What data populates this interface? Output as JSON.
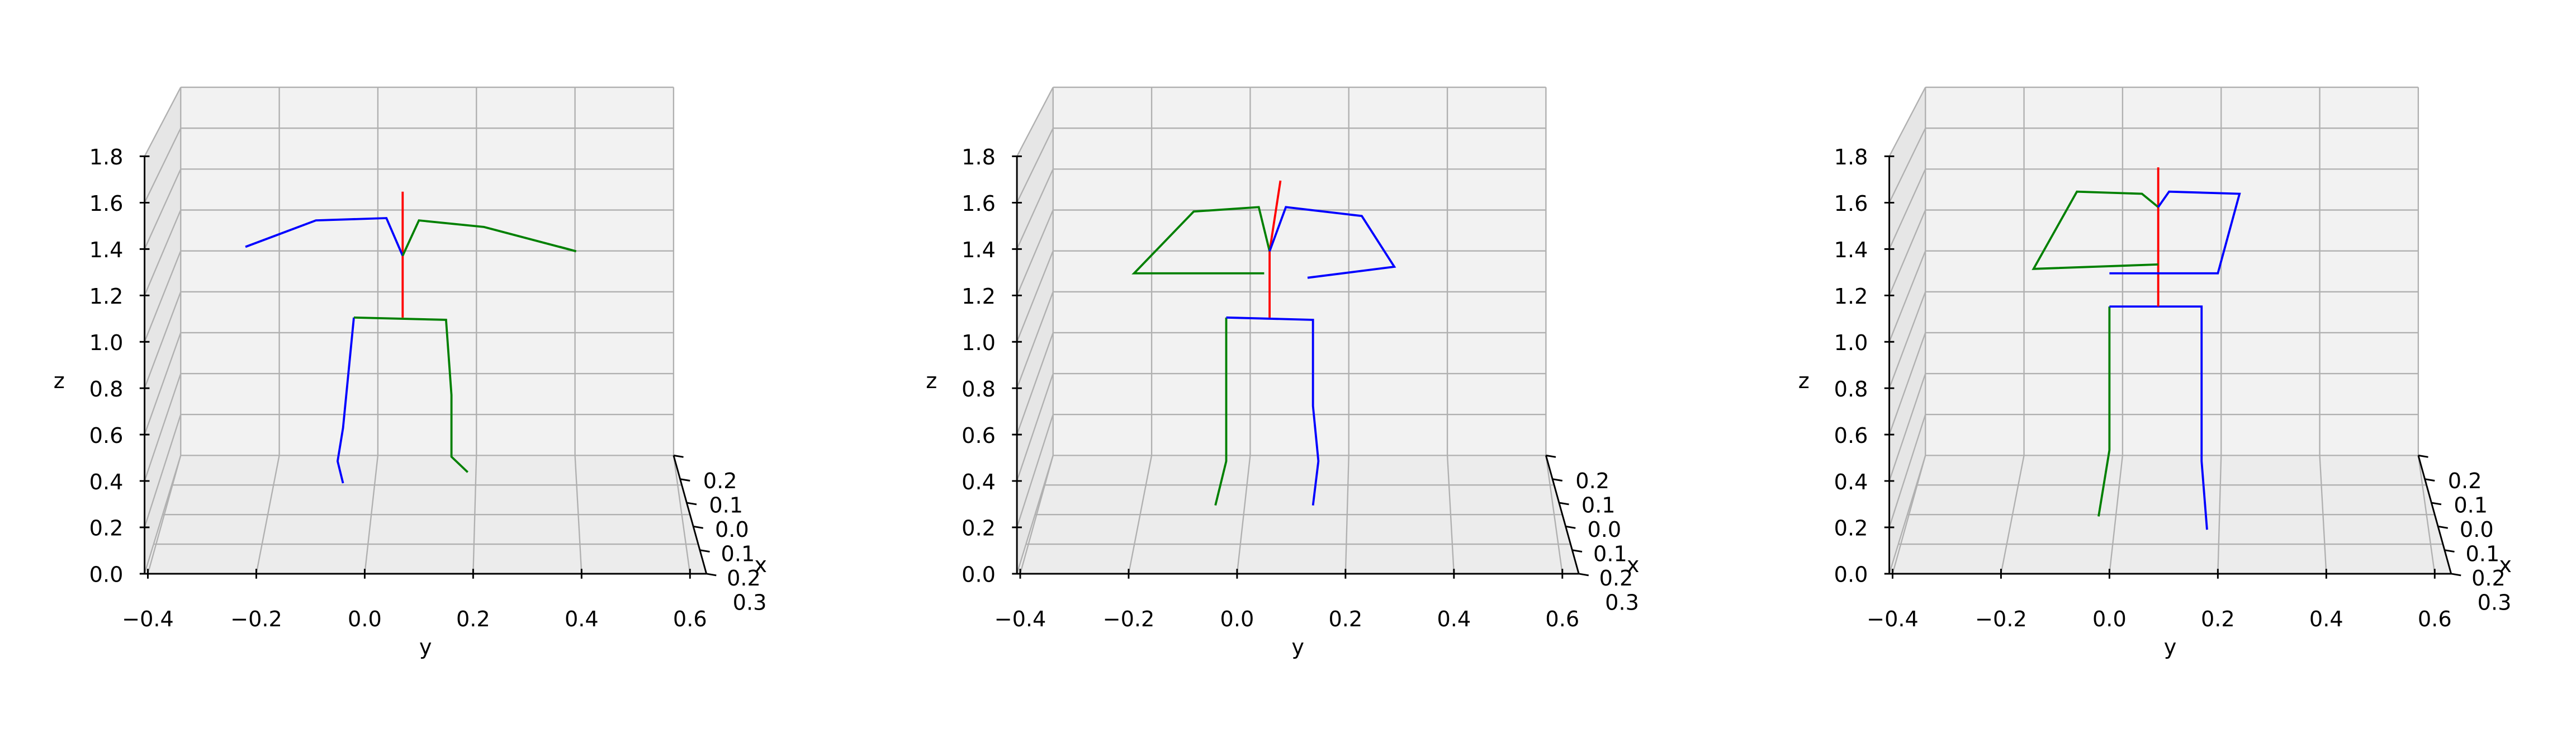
{
  "chart_data": [
    {
      "type": "line3d",
      "title": "",
      "xlabel": "x",
      "ylabel": "y",
      "zlabel": "z",
      "xlim": [
        -0.3,
        0.25
      ],
      "ylim": [
        -0.4,
        0.6
      ],
      "zlim": [
        0.0,
        1.8
      ],
      "grid": true,
      "x_ticks": [
        "0.2",
        "0.1",
        "0.0",
        "0.1",
        "0.2",
        "0.3"
      ],
      "y_ticks": [
        "−0.4",
        "−0.2",
        "0.0",
        "0.2",
        "0.4",
        "0.6"
      ],
      "z_ticks": [
        "0.0",
        "0.2",
        "0.4",
        "0.6",
        "0.8",
        "1.0",
        "1.2",
        "1.4",
        "1.6",
        "1.8"
      ],
      "series": [
        {
          "color": "#0000ff",
          "points": [
            [
              -0.02,
              1.1
            ],
            [
              -0.04,
              0.6
            ],
            [
              -0.05,
              0.45
            ],
            [
              -0.04,
              0.35
            ]
          ]
        },
        {
          "color": "#008000",
          "points": [
            [
              -0.02,
              1.1
            ],
            [
              0.15,
              1.09
            ],
            [
              0.16,
              0.75
            ],
            [
              0.16,
              0.47
            ],
            [
              0.19,
              0.4
            ]
          ]
        },
        {
          "color": "#ff0000",
          "points": [
            [
              0.07,
              1.1
            ],
            [
              0.07,
              1.35
            ],
            [
              0.07,
              1.67
            ]
          ]
        },
        {
          "color": "#0000ff",
          "points": [
            [
              0.07,
              1.38
            ],
            [
              0.04,
              1.55
            ],
            [
              -0.09,
              1.54
            ],
            [
              -0.22,
              1.42
            ]
          ]
        },
        {
          "color": "#008000",
          "points": [
            [
              0.07,
              1.38
            ],
            [
              0.1,
              1.54
            ],
            [
              0.22,
              1.51
            ],
            [
              0.39,
              1.4
            ],
            [
              0.36,
              1.42
            ]
          ]
        }
      ]
    },
    {
      "type": "line3d",
      "title": "",
      "xlabel": "x",
      "ylabel": "y",
      "zlabel": "z",
      "xlim": [
        -0.3,
        0.25
      ],
      "ylim": [
        -0.4,
        0.6
      ],
      "zlim": [
        0.0,
        1.8
      ],
      "grid": true,
      "x_ticks": [
        "0.2",
        "0.1",
        "0.0",
        "0.1",
        "0.2",
        "0.3"
      ],
      "y_ticks": [
        "−0.4",
        "−0.2",
        "0.0",
        "0.2",
        "0.4",
        "0.6"
      ],
      "z_ticks": [
        "0.0",
        "0.2",
        "0.4",
        "0.6",
        "0.8",
        "1.0",
        "1.2",
        "1.4",
        "1.6",
        "1.8"
      ],
      "series": [
        {
          "color": "#008000",
          "points": [
            [
              -0.02,
              1.1
            ],
            [
              -0.02,
              0.45
            ],
            [
              -0.04,
              0.25
            ]
          ]
        },
        {
          "color": "#0000ff",
          "points": [
            [
              -0.02,
              1.1
            ],
            [
              0.14,
              1.09
            ],
            [
              0.14,
              0.7
            ],
            [
              0.15,
              0.45
            ],
            [
              0.14,
              0.25
            ]
          ]
        },
        {
          "color": "#ff0000",
          "points": [
            [
              0.06,
              1.1
            ],
            [
              0.06,
              1.4
            ],
            [
              0.08,
              1.72
            ]
          ]
        },
        {
          "color": "#008000",
          "points": [
            [
              0.06,
              1.4
            ],
            [
              0.04,
              1.6
            ],
            [
              -0.08,
              1.58
            ],
            [
              -0.19,
              1.3
            ],
            [
              0.05,
              1.3
            ]
          ]
        },
        {
          "color": "#0000ff",
          "points": [
            [
              0.06,
              1.4
            ],
            [
              0.09,
              1.6
            ],
            [
              0.23,
              1.56
            ],
            [
              0.29,
              1.33
            ],
            [
              0.13,
              1.28
            ]
          ]
        }
      ]
    },
    {
      "type": "line3d",
      "title": "",
      "xlabel": "x",
      "ylabel": "y",
      "zlabel": "z",
      "xlim": [
        -0.3,
        0.25
      ],
      "ylim": [
        -0.4,
        0.6
      ],
      "zlim": [
        0.0,
        1.8
      ],
      "grid": true,
      "x_ticks": [
        "0.2",
        "0.1",
        "0.0",
        "0.1",
        "0.2",
        "0.3"
      ],
      "y_ticks": [
        "−0.4",
        "−0.2",
        "0.0",
        "0.2",
        "0.4",
        "0.6"
      ],
      "z_ticks": [
        "0.0",
        "0.2",
        "0.4",
        "0.6",
        "0.8",
        "1.0",
        "1.2",
        "1.4",
        "1.6",
        "1.8"
      ],
      "series": [
        {
          "color": "#008000",
          "points": [
            [
              0.0,
              1.15
            ],
            [
              0.0,
              0.5
            ],
            [
              -0.02,
              0.2
            ]
          ]
        },
        {
          "color": "#0000ff",
          "points": [
            [
              0.0,
              1.15
            ],
            [
              0.17,
              1.15
            ],
            [
              0.17,
              0.45
            ],
            [
              0.18,
              0.14
            ]
          ]
        },
        {
          "color": "#ff0000",
          "points": [
            [
              0.09,
              1.15
            ],
            [
              0.09,
              1.4
            ],
            [
              0.09,
              1.78
            ]
          ]
        },
        {
          "color": "#008000",
          "points": [
            [
              0.09,
              1.6
            ],
            [
              0.06,
              1.66
            ],
            [
              -0.06,
              1.67
            ],
            [
              -0.14,
              1.32
            ],
            [
              0.09,
              1.34
            ]
          ]
        },
        {
          "color": "#0000ff",
          "points": [
            [
              0.09,
              1.6
            ],
            [
              0.11,
              1.67
            ],
            [
              0.24,
              1.66
            ],
            [
              0.2,
              1.3
            ],
            [
              0.0,
              1.3
            ]
          ]
        }
      ]
    }
  ]
}
